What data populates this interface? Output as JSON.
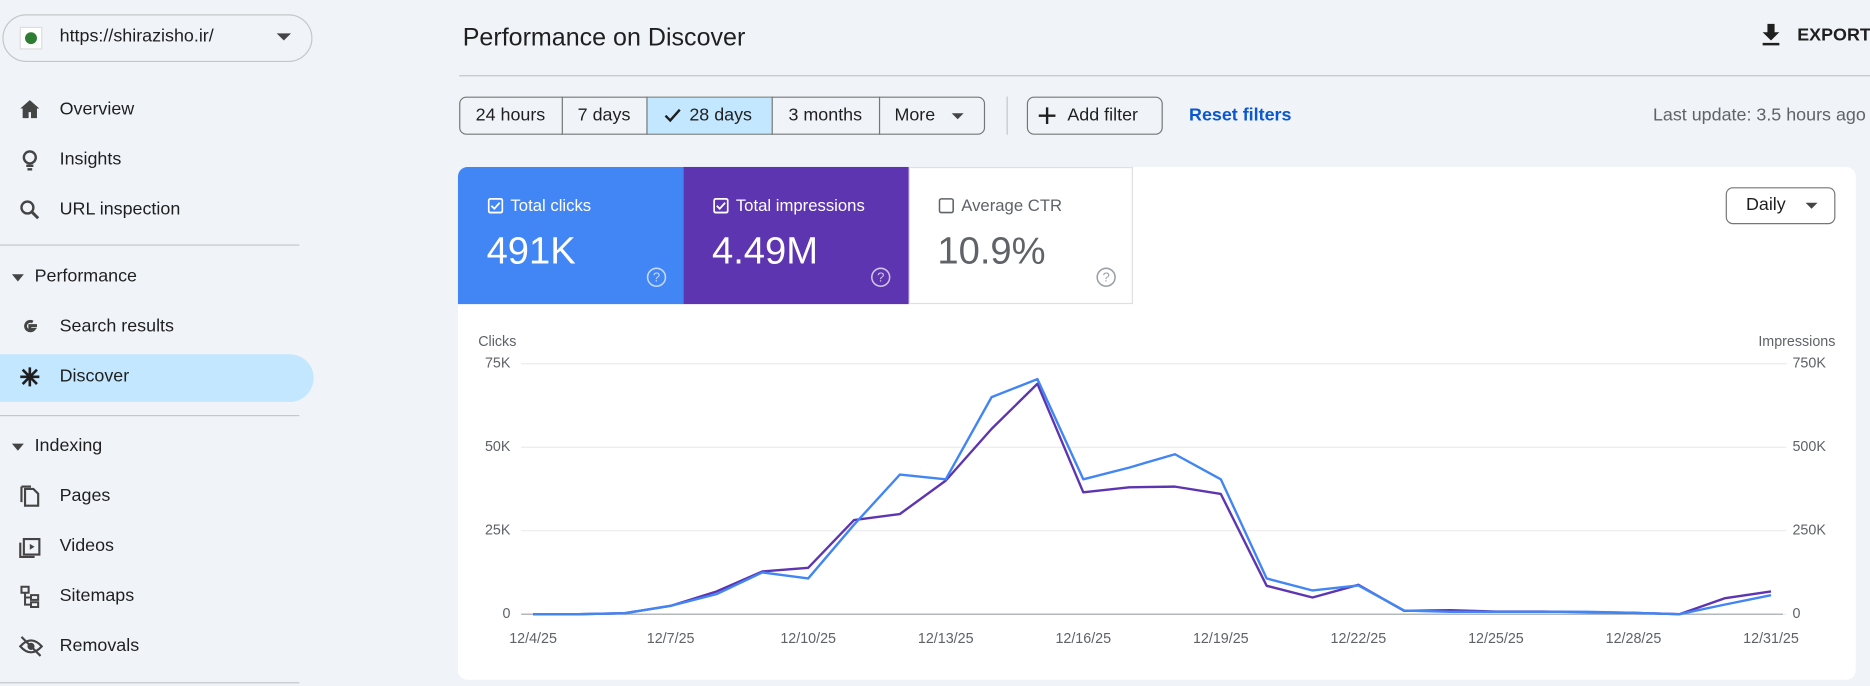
{
  "site_selector": {
    "url": "https://shirazisho.ir/"
  },
  "nav_top": [
    "Overview",
    "Insights",
    "URL inspection"
  ],
  "performance": {
    "title": "Performance",
    "items": [
      "Search results",
      "Discover"
    ]
  },
  "indexing": {
    "title": "Indexing",
    "items": [
      "Pages",
      "Videos",
      "Sitemaps",
      "Removals"
    ]
  },
  "header": {
    "title": "Performance on Discover",
    "export": "EXPORT"
  },
  "filters": {
    "ranges": [
      "24 hours",
      "7 days",
      "28 days",
      "3 months",
      "More"
    ],
    "add_filter": "Add filter",
    "reset": "Reset filters",
    "last_update": "Last update: 3.5 hours ago"
  },
  "metrics": [
    {
      "label": "Total clicks",
      "value": "491K"
    },
    {
      "label": "Total impressions",
      "value": "4.49M"
    },
    {
      "label": "Average CTR",
      "value": "10.9%"
    }
  ],
  "granularity": "Daily",
  "chart_data": {
    "type": "line",
    "y_label": "Clicks",
    "y2_label": "Impressions",
    "categories": [
      "12/4/25",
      null,
      null,
      "12/7/25",
      null,
      null,
      "12/10/25",
      null,
      null,
      "12/13/25",
      null,
      null,
      "12/16/25",
      null,
      null,
      "12/19/25",
      null,
      null,
      "12/22/25",
      null,
      null,
      "12/25/25",
      null,
      null,
      "12/28/25",
      null,
      null,
      "12/31/25"
    ],
    "series": [
      {
        "color": "#4285f4",
        "axis": "y",
        "values": [
          0,
          0,
          300,
          2500,
          6000,
          12500,
          10700,
          26800,
          41800,
          40400,
          65000,
          70400,
          40400,
          43900,
          47900,
          40400,
          10700,
          7100,
          8600,
          1100,
          700,
          700,
          700,
          700,
          400,
          0,
          2900,
          5700
        ]
      },
      {
        "color": "#5e35b1",
        "axis": "y2",
        "values": [
          0,
          0,
          3000,
          25000,
          68000,
          128000,
          139000,
          282000,
          300000,
          400000,
          555000,
          690000,
          365000,
          380000,
          382000,
          360000,
          85000,
          50000,
          88000,
          10000,
          12000,
          8000,
          8000,
          6000,
          4000,
          0,
          48000,
          68000
        ]
      }
    ],
    "ylim": [
      0,
      75000
    ],
    "yticks": [
      0,
      {
        "value": 25000,
        "label": "25K"
      },
      {
        "value": 50000,
        "label": "50K"
      },
      {
        "value": 75000,
        "label": "75K"
      }
    ],
    "y2lim": [
      0,
      750000
    ],
    "y2ticks": [
      0,
      {
        "value": 250000,
        "label": "250K"
      },
      {
        "value": 500000,
        "label": "500K"
      },
      {
        "value": 750000,
        "label": "750K"
      }
    ],
    "grid": true
  }
}
